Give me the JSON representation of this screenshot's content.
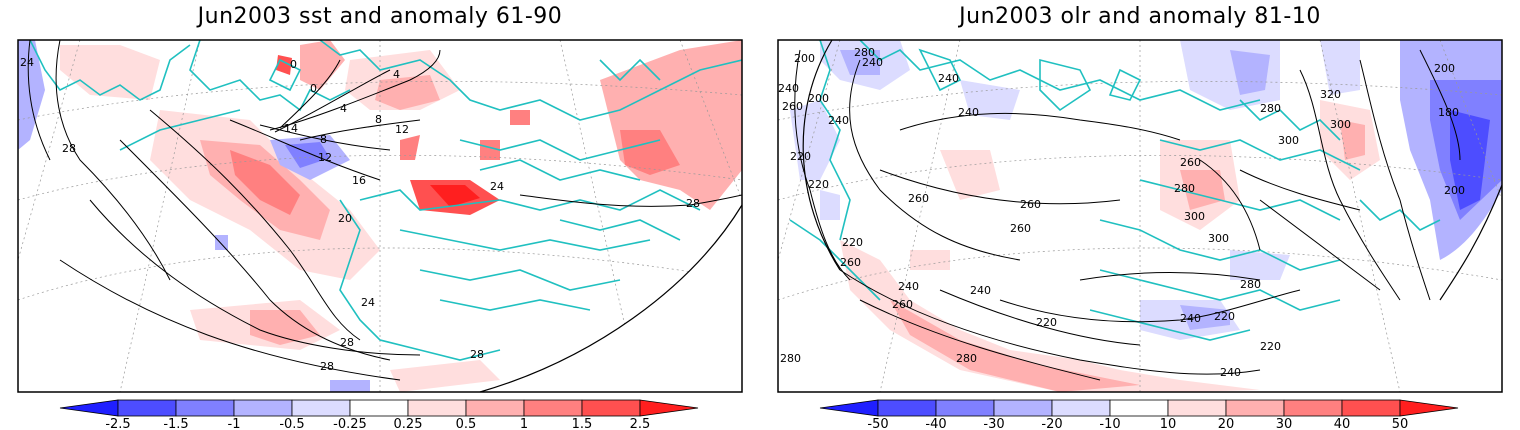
{
  "panels": [
    {
      "title": "Jun2003 sst and anomaly 61-90",
      "variable": "sst",
      "contour_labels": [
        "24",
        "28",
        "0",
        "0",
        "4",
        "4",
        "8",
        "8",
        "12",
        "12",
        "14",
        "16",
        "20",
        "24",
        "24",
        "28",
        "28",
        "28",
        "28"
      ],
      "colorbar": {
        "labels": [
          "-2.5",
          "-1.5",
          "-1",
          "-0.5",
          "-0.25",
          "0.25",
          "0.5",
          "1",
          "1.5",
          "2.5"
        ],
        "colors": [
          "#1f1fff",
          "#4d4dff",
          "#8080ff",
          "#b3b3ff",
          "#dcdcff",
          "#ffffff",
          "#ffdede",
          "#ffb0b0",
          "#ff8080",
          "#ff5050",
          "#ff1f1f"
        ]
      }
    },
    {
      "title": "Jun2003 olr and anomaly 81-10",
      "variable": "olr",
      "contour_labels": [
        "200",
        "200",
        "220",
        "220",
        "220",
        "240",
        "240",
        "240",
        "240",
        "240",
        "240",
        "260",
        "260",
        "260",
        "260",
        "260",
        "260",
        "280",
        "280",
        "280",
        "280",
        "300",
        "300",
        "300",
        "320",
        "180",
        "200",
        "200",
        "220",
        "240",
        "260",
        "280",
        "220",
        "240",
        "220",
        "240",
        "280",
        "300"
      ],
      "colorbar": {
        "labels": [
          "-50",
          "-40",
          "-30",
          "-20",
          "-10",
          "10",
          "20",
          "30",
          "40",
          "50"
        ],
        "colors": [
          "#1f1fff",
          "#4d4dff",
          "#8080ff",
          "#b3b3ff",
          "#dcdcff",
          "#ffffff",
          "#ffdede",
          "#ffb0b0",
          "#ff8080",
          "#ff5050",
          "#ff1f1f"
        ]
      }
    }
  ],
  "colors": {
    "coastline": "#20c0c0",
    "contour": "#000000",
    "frame": "#000000",
    "grid": "#999999"
  }
}
